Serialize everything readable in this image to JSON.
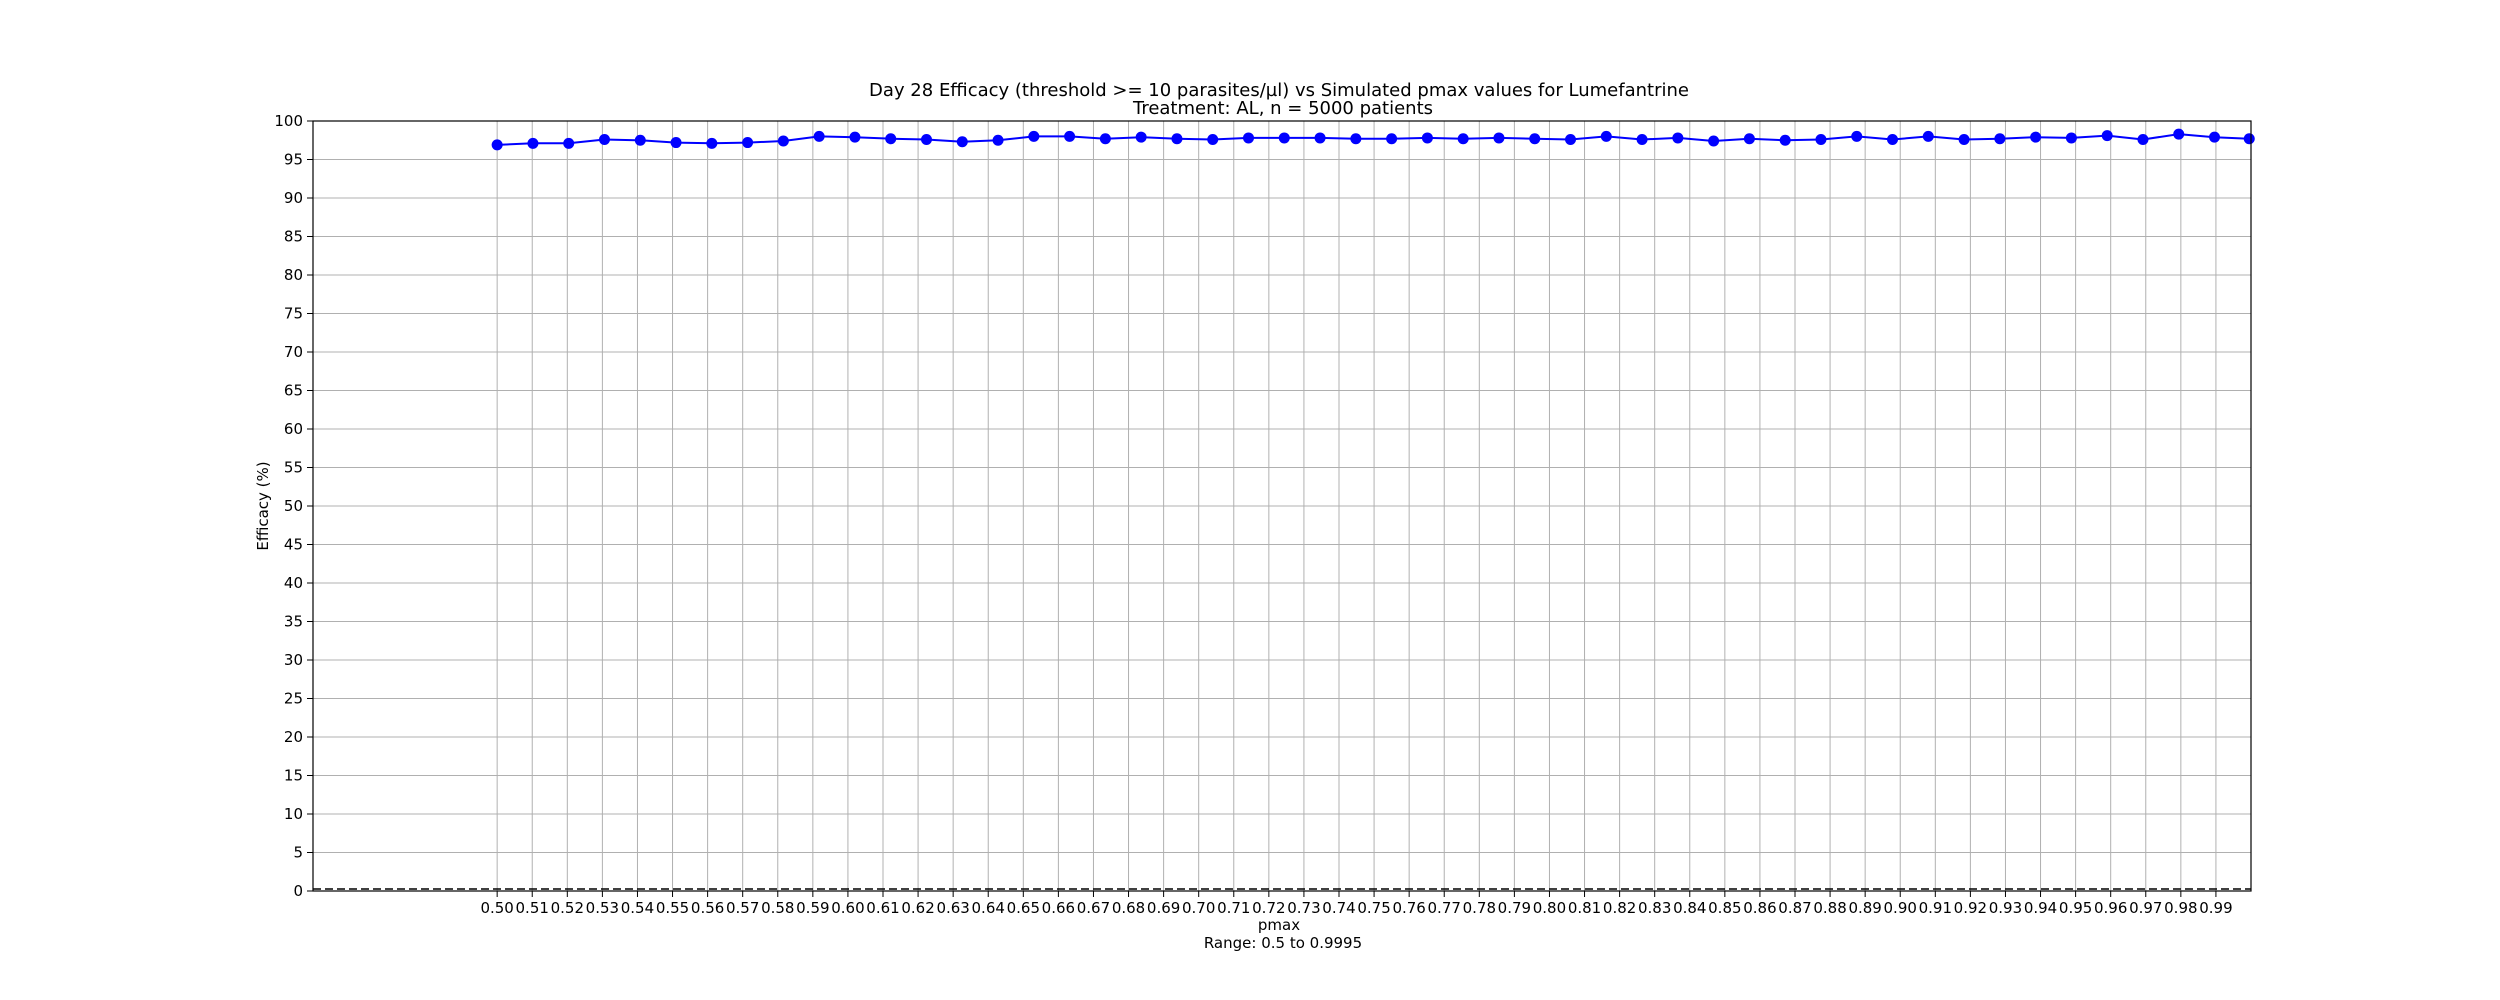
{
  "chart_data": {
    "type": "line",
    "title": "Day 28 Efficacy (threshold >= 10 parasites/µl) vs Simulated pmax values for Lumefantrine",
    "subtitle": "Treatment: AL, n = 5000 patients",
    "xlabel": "pmax",
    "xlabel_note": "Range: 0.5 to 0.9995",
    "ylabel": "Efficacy (%)",
    "ylim": [
      0,
      100
    ],
    "yticks": [
      "0",
      "5",
      "10",
      "15",
      "20",
      "25",
      "30",
      "35",
      "40",
      "45",
      "50",
      "55",
      "60",
      "65",
      "70",
      "75",
      "80",
      "85",
      "90",
      "95",
      "100"
    ],
    "xlim": [
      0.4475,
      1.0
    ],
    "x_tick_labels": [
      "0.50",
      "0.51",
      "0.52",
      "0.53",
      "0.54",
      "0.55",
      "0.56",
      "0.57",
      "0.58",
      "0.59",
      "0.60",
      "0.61",
      "0.62",
      "0.63",
      "0.64",
      "0.65",
      "0.66",
      "0.67",
      "0.68",
      "0.69",
      "0.70",
      "0.71",
      "0.72",
      "0.73",
      "0.74",
      "0.75",
      "0.76",
      "0.77",
      "0.78",
      "0.79",
      "0.80",
      "0.81",
      "0.82",
      "0.83",
      "0.84",
      "0.85",
      "0.86",
      "0.87",
      "0.88",
      "0.89",
      "0.90",
      "0.91",
      "0.92",
      "0.93",
      "0.94",
      "0.95",
      "0.96",
      "0.97",
      "0.98",
      "0.99"
    ],
    "x_ticks": [
      0.5,
      0.51,
      0.52,
      0.53,
      0.54,
      0.55,
      0.56,
      0.57,
      0.58,
      0.59,
      0.6,
      0.61,
      0.62,
      0.63,
      0.64,
      0.65,
      0.66,
      0.67,
      0.68,
      0.69,
      0.7,
      0.71,
      0.72,
      0.73,
      0.74,
      0.75,
      0.76,
      0.77,
      0.78,
      0.79,
      0.8,
      0.81,
      0.82,
      0.83,
      0.84,
      0.85,
      0.86,
      0.87,
      0.88,
      0.89,
      0.9,
      0.91,
      0.92,
      0.93,
      0.94,
      0.95,
      0.96,
      0.97,
      0.98,
      0.99
    ],
    "grid": true,
    "reference_line": {
      "y": 0,
      "style": "dashed"
    },
    "series": [
      {
        "color": "#0000ff",
        "x": [
          0.5,
          0.5102,
          0.5204,
          0.5306,
          0.5408,
          0.551,
          0.5612,
          0.5714,
          0.5816,
          0.5918,
          0.602,
          0.6122,
          0.6224,
          0.6326,
          0.6428,
          0.653,
          0.6632,
          0.6734,
          0.6836,
          0.6938,
          0.704,
          0.7142,
          0.7244,
          0.7346,
          0.7448,
          0.755,
          0.7652,
          0.7754,
          0.7856,
          0.7958,
          0.806,
          0.8162,
          0.8264,
          0.8366,
          0.8468,
          0.857,
          0.8672,
          0.8774,
          0.8876,
          0.8978,
          0.908,
          0.9182,
          0.9284,
          0.9386,
          0.9488,
          0.959,
          0.9692,
          0.9794,
          0.9896,
          0.9995
        ],
        "y": [
          96.9,
          97.1,
          97.1,
          97.6,
          97.5,
          97.2,
          97.1,
          97.2,
          97.4,
          98.0,
          97.9,
          97.7,
          97.6,
          97.3,
          97.5,
          98.0,
          98.0,
          97.7,
          97.9,
          97.7,
          97.6,
          97.8,
          97.8,
          97.8,
          97.7,
          97.7,
          97.8,
          97.7,
          97.8,
          97.7,
          97.6,
          98.0,
          97.6,
          97.8,
          97.4,
          97.7,
          97.5,
          97.6,
          98.0,
          97.6,
          98.0,
          97.6,
          97.7,
          97.9,
          97.8,
          98.1,
          97.6,
          98.3,
          97.9,
          97.7
        ]
      }
    ]
  }
}
